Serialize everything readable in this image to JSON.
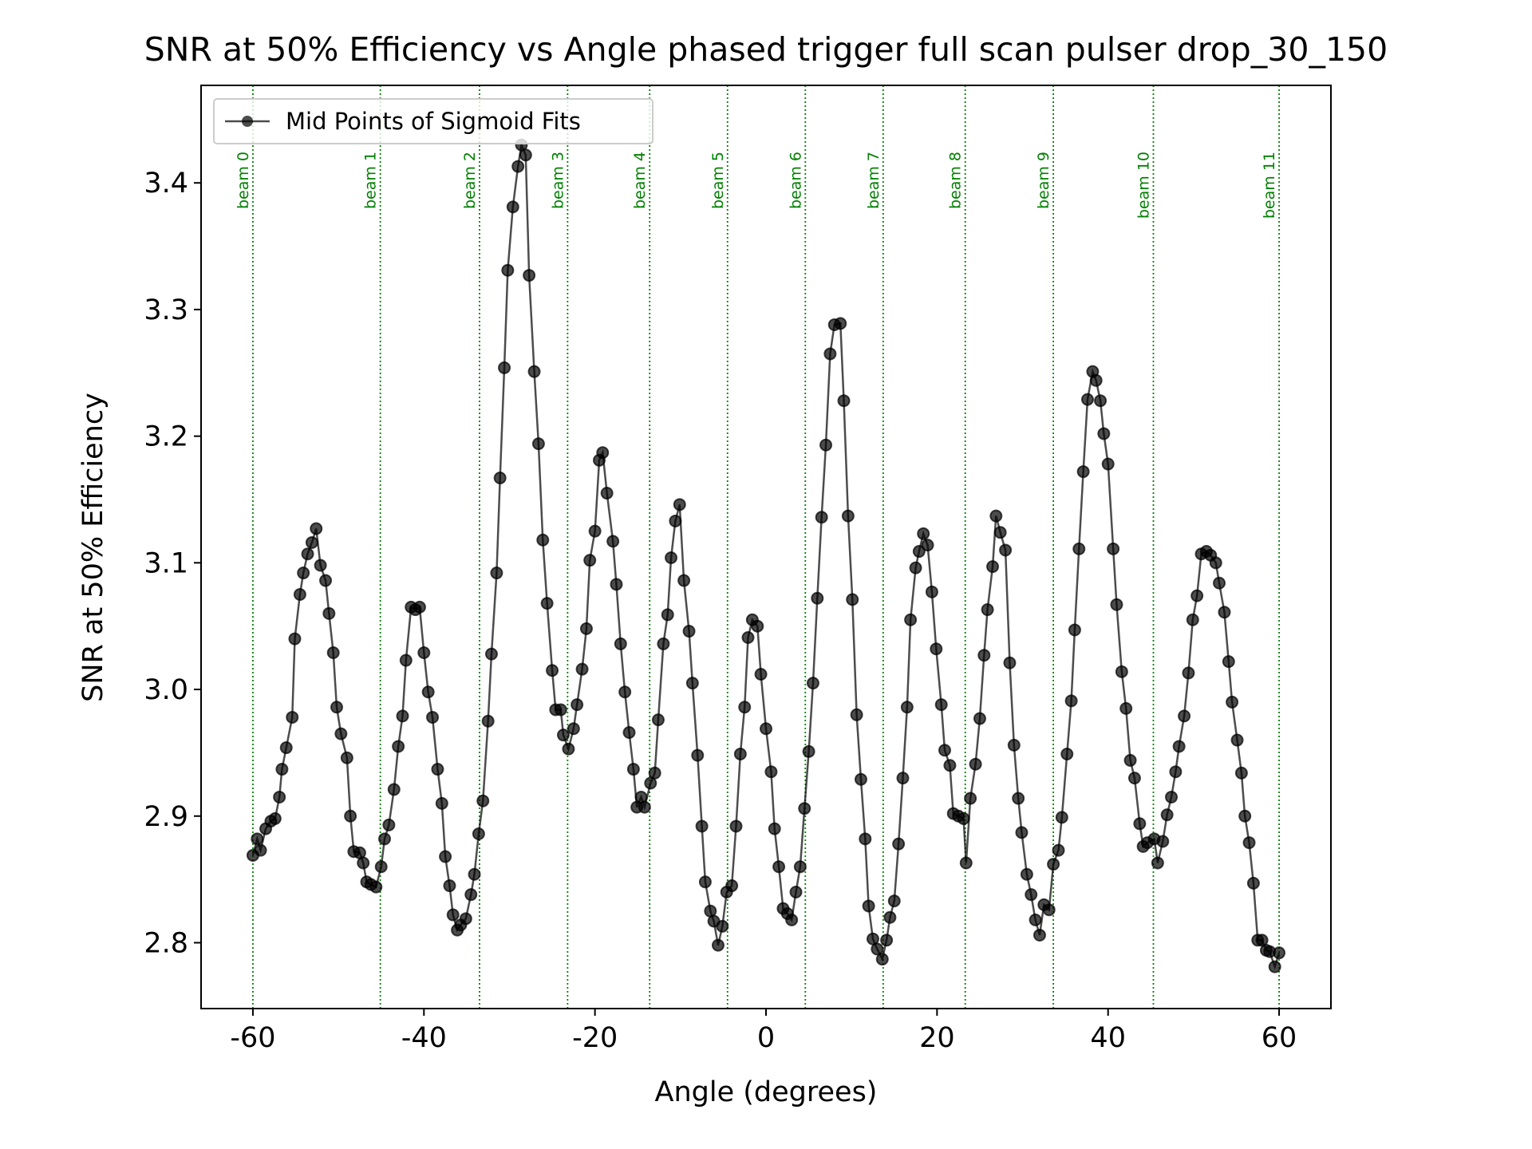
{
  "chart_data": {
    "type": "line",
    "title": "SNR at 50% Efficiency vs Angle phased trigger full scan pulser drop_30_150",
    "xlabel": "Angle (degrees)",
    "ylabel": "SNR at 50% Efficiency",
    "xlim": [
      -66.06,
      66.06
    ],
    "ylim": [
      2.748,
      3.477
    ],
    "xticks": [
      -60,
      -40,
      -20,
      0,
      20,
      40,
      60
    ],
    "yticks": [
      2.8,
      2.9,
      {
        "value": 3.0,
        "label": "3.0"
      },
      3.1,
      3.2,
      3.3,
      3.4
    ],
    "grid": false,
    "legend": "upper left",
    "x": [
      -60,
      -59.5,
      -59.1,
      -58.5,
      -57.9,
      -57.4,
      -56.9,
      -56.6,
      -56.1,
      -55.4,
      -55.1,
      -54.5,
      -54.1,
      -53.6,
      -53.1,
      -52.6,
      -52.1,
      -51.5,
      -51.1,
      -50.6,
      -50.2,
      -49.7,
      -49.0,
      -48.6,
      -48.2,
      -47.5,
      -47.1,
      -46.7,
      -46.2,
      -45.6,
      -45.0,
      -44.6,
      -44.1,
      -43.5,
      -43.0,
      -42.5,
      -42.1,
      -41.5,
      -41.0,
      -40.5,
      -40.0,
      -39.5,
      -39.0,
      -38.4,
      -37.9,
      -37.5,
      -37.0,
      -36.6,
      -36.1,
      -35.7,
      -35.1,
      -34.5,
      -34.1,
      -33.6,
      -33.1,
      -32.5,
      -32.1,
      -31.5,
      -31.1,
      -30.6,
      -30.2,
      -29.6,
      -29.0,
      -28.6,
      -28.1,
      -27.7,
      -27.1,
      -26.6,
      -26.1,
      -25.6,
      -25.0,
      -24.6,
      -24.0,
      -23.7,
      -23.1,
      -22.5,
      -22.1,
      -21.5,
      -21.0,
      -20.6,
      -20.0,
      -19.5,
      -19.1,
      -18.6,
      -17.9,
      -17.5,
      -17.0,
      -16.5,
      -16.0,
      -15.5,
      -15.1,
      -14.6,
      -14.2,
      -13.5,
      -13.0,
      -12.6,
      -12.0,
      -11.5,
      -11.1,
      -10.6,
      -10.1,
      -9.6,
      -9.0,
      -8.6,
      -8.0,
      -7.5,
      -7.1,
      -6.5,
      -6.1,
      -5.6,
      -5.1,
      -4.6,
      -4.0,
      -3.5,
      -3.0,
      -2.5,
      -2.1,
      -1.6,
      -1.0,
      -0.6,
      0.0,
      0.6,
      1.0,
      1.5,
      2.0,
      2.5,
      3.0,
      3.5,
      4.0,
      4.5,
      5.0,
      5.5,
      6.0,
      6.5,
      7.0,
      7.5,
      8.0,
      8.7,
      9.1,
      9.6,
      10.1,
      10.6,
      11.1,
      11.6,
      12.0,
      12.5,
      13.0,
      13.6,
      14.1,
      14.5,
      15.0,
      15.5,
      16.0,
      16.5,
      16.9,
      17.5,
      17.9,
      18.4,
      18.9,
      19.4,
      19.9,
      20.5,
      20.9,
      21.5,
      21.9,
      22.5,
      23.1,
      23.4,
      23.9,
      24.5,
      25.0,
      25.5,
      25.9,
      26.5,
      26.9,
      27.4,
      28.0,
      28.5,
      29.0,
      29.5,
      29.9,
      30.5,
      31.0,
      31.5,
      32.0,
      32.5,
      33.1,
      33.6,
      34.2,
      34.6,
      35.2,
      35.7,
      36.1,
      36.6,
      37.1,
      37.6,
      38.2,
      38.6,
      39.1,
      39.5,
      40.0,
      40.6,
      41.0,
      41.6,
      42.1,
      42.6,
      43.1,
      43.7,
      44.1,
      44.6,
      45.4,
      45.8,
      46.4,
      46.9,
      47.4,
      47.9,
      48.3,
      48.9,
      49.4,
      49.9,
      50.4,
      50.9,
      51.5,
      52.0,
      52.6,
      53.0,
      53.6,
      54.1,
      54.5,
      55.1,
      55.6,
      56.0,
      56.5,
      57.0,
      57.5,
      58.0,
      58.5,
      58.9,
      59.5,
      60.0
    ],
    "series": [
      {
        "name": "Mid Points of Sigmoid Fits",
        "color": "#000000",
        "alpha": 0.7,
        "values": [
          2.869,
          2.882,
          2.873,
          2.89,
          2.896,
          2.898,
          2.915,
          2.937,
          2.954,
          2.978,
          3.04,
          3.075,
          3.092,
          3.107,
          3.116,
          3.127,
          3.098,
          3.086,
          3.06,
          3.029,
          2.986,
          2.965,
          2.946,
          2.9,
          2.872,
          2.871,
          2.863,
          2.848,
          2.846,
          2.844,
          2.86,
          2.882,
          2.893,
          2.921,
          2.955,
          2.979,
          3.023,
          3.065,
          3.063,
          3.065,
          3.029,
          2.998,
          2.978,
          2.937,
          2.91,
          2.868,
          2.845,
          2.822,
          2.81,
          2.814,
          2.819,
          2.838,
          2.854,
          2.886,
          2.912,
          2.975,
          3.028,
          3.092,
          3.167,
          3.254,
          3.331,
          3.381,
          3.413,
          3.43,
          3.422,
          3.327,
          3.251,
          3.194,
          3.118,
          3.068,
          3.015,
          2.984,
          2.984,
          2.964,
          2.953,
          2.969,
          2.988,
          3.016,
          3.048,
          3.102,
          3.125,
          3.181,
          3.187,
          3.155,
          3.117,
          3.083,
          3.036,
          2.998,
          2.966,
          2.937,
          2.907,
          2.915,
          2.907,
          2.926,
          2.934,
          2.976,
          3.036,
          3.059,
          3.104,
          3.133,
          3.146,
          3.086,
          3.046,
          3.005,
          2.948,
          2.892,
          2.848,
          2.825,
          2.817,
          2.798,
          2.813,
          2.84,
          2.845,
          2.892,
          2.949,
          2.986,
          3.041,
          3.055,
          3.05,
          3.012,
          2.969,
          2.935,
          2.89,
          2.86,
          2.827,
          2.823,
          2.818,
          2.84,
          2.86,
          2.906,
          2.951,
          3.005,
          3.072,
          3.136,
          3.193,
          3.265,
          3.288,
          3.289,
          3.228,
          3.137,
          3.071,
          2.98,
          2.929,
          2.882,
          2.829,
          2.803,
          2.795,
          2.787,
          2.802,
          2.82,
          2.833,
          2.878,
          2.93,
          2.986,
          3.055,
          3.096,
          3.109,
          3.123,
          3.114,
          3.077,
          3.032,
          2.988,
          2.952,
          2.94,
          2.902,
          2.9,
          2.898,
          2.863,
          2.914,
          2.941,
          2.977,
          3.027,
          3.063,
          3.097,
          3.137,
          3.124,
          3.11,
          3.021,
          2.956,
          2.914,
          2.887,
          2.854,
          2.838,
          2.818,
          2.806,
          2.83,
          2.826,
          2.862,
          2.873,
          2.899,
          2.949,
          2.991,
          3.047,
          3.111,
          3.172,
          3.229,
          3.251,
          3.244,
          3.228,
          3.202,
          3.178,
          3.111,
          3.067,
          3.014,
          2.985,
          2.944,
          2.93,
          2.894,
          2.876,
          2.879,
          2.882,
          2.863,
          2.88,
          2.901,
          2.915,
          2.935,
          2.955,
          2.979,
          3.013,
          3.055,
          3.074,
          3.107,
          3.109,
          3.106,
          3.1,
          3.084,
          3.061,
          3.022,
          2.99,
          2.96,
          2.934,
          2.9,
          2.879,
          2.847,
          2.802,
          2.802,
          2.794,
          2.793,
          2.781,
          2.792
        ]
      }
    ],
    "vlines": {
      "color": "#008000",
      "x": [
        -60,
        -45.1,
        -33.5,
        -23.2,
        -13.6,
        -4.5,
        4.6,
        13.7,
        23.3,
        33.6,
        45.3,
        60
      ],
      "labels": [
        "beam 0",
        "beam 1",
        "beam 2",
        "beam 3",
        "beam 4",
        "beam 5",
        "beam 6",
        "beam 7",
        "beam 8",
        "beam 9",
        "beam 10",
        "beam 11"
      ]
    }
  }
}
